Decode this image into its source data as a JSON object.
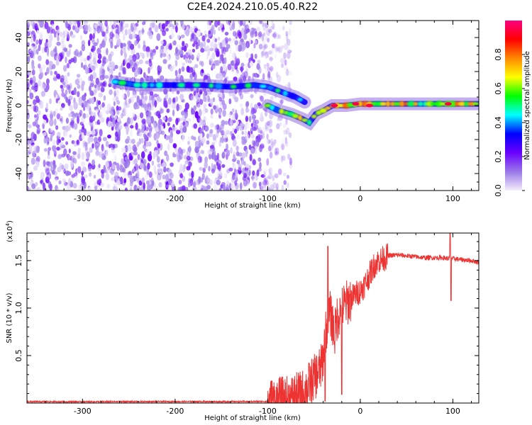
{
  "title": "C2E4.2024.210.05.40.R22",
  "chart_data": [
    {
      "type": "heatmap",
      "xlabel": "Height of straight line (km)",
      "ylabel": "Frequency (Hz)",
      "xlim": [
        -360,
        128
      ],
      "ylim": [
        -50,
        50
      ],
      "xticks": [
        -300,
        -200,
        -100,
        0,
        100
      ],
      "yticks": [
        -40,
        -20,
        0,
        20,
        40
      ],
      "colorbar": {
        "label": "Normalized spectral amplitude",
        "range": [
          0,
          1
        ],
        "ticks": [
          "0.0",
          "0.2",
          "0.4",
          "0.6",
          "0.8"
        ],
        "colors": [
          "#f4eefc",
          "#9a78e8",
          "#6a00ff",
          "#0000ff",
          "#00ffff",
          "#00ff00",
          "#ffff00",
          "#ff8800",
          "#ff0000",
          "#ff0080"
        ]
      },
      "noise_region": {
        "x_range": [
          -360,
          -95
        ],
        "y_range": [
          -50,
          50
        ]
      },
      "tracks": [
        {
          "points": [
            [
              -265,
              14
            ],
            [
              -240,
              12
            ],
            [
              -200,
              12
            ],
            [
              -170,
              12
            ],
            [
              -140,
              11
            ],
            [
              -115,
              12
            ],
            [
              -100,
              11
            ],
            [
              -85,
              8
            ],
            [
              -70,
              5
            ],
            [
              -60,
              2
            ]
          ],
          "level": 0.45
        },
        {
          "points": [
            [
              -100,
              0
            ],
            [
              -88,
              -3
            ],
            [
              -75,
              -5
            ],
            [
              -62,
              -8
            ],
            [
              -55,
              -10
            ],
            [
              -48,
              -5
            ],
            [
              -40,
              -3
            ],
            [
              -30,
              0
            ],
            [
              -15,
              0
            ],
            [
              0,
              1
            ],
            [
              20,
              1
            ],
            [
              50,
              1
            ],
            [
              80,
              1
            ],
            [
              100,
              1
            ],
            [
              128,
              1
            ]
          ],
          "level": 0.6
        }
      ],
      "hotspots": [
        [
          -28,
          0
        ],
        [
          -5,
          1
        ],
        [
          10,
          0
        ],
        [
          95,
          1
        ]
      ]
    },
    {
      "type": "line",
      "xlabel": "Height of straight line (km)",
      "ylabel": "SNR (10 * v/v)",
      "yscale_label": "(x10",
      "yscale_exp": "4",
      "yscale_close": ")",
      "xlim": [
        -360,
        128
      ],
      "ylim": [
        0,
        17900
      ],
      "xticks": [
        -300,
        -200,
        -100,
        0,
        100
      ],
      "yticks": [
        0.5,
        1,
        1.5
      ],
      "ytick_labels": [
        "0.5",
        "1.0",
        "1.5"
      ],
      "grid": false,
      "color": "#ee3333",
      "series": [
        {
          "x": [
            -360,
            -300,
            -250,
            -200,
            -150,
            -120,
            -100,
            -90,
            -80,
            -70,
            -60,
            -55,
            -50,
            -46,
            -42,
            -40,
            -38,
            -35,
            -33,
            -30,
            -28,
            -25,
            -20,
            -15,
            -10,
            -5,
            0,
            5,
            10,
            15,
            20,
            25,
            30,
            40,
            50,
            60,
            70,
            80,
            90,
            95,
            97,
            98,
            100,
            110,
            120,
            128
          ],
          "y": [
            150,
            140,
            150,
            160,
            150,
            160,
            170,
            260,
            400,
            700,
            1200,
            2000,
            2600,
            3200,
            3800,
            5000,
            7000,
            8500,
            9500,
            8500,
            7000,
            9000,
            10000,
            10500,
            11000,
            11500,
            11800,
            12500,
            13500,
            14500,
            15000,
            15200,
            15500,
            15600,
            15500,
            15400,
            15300,
            15300,
            15300,
            15200,
            15300,
            15300,
            15200,
            15100,
            15000,
            14800
          ]
        }
      ],
      "spikes": [
        [
          -35,
          16500
        ],
        [
          -38,
          200
        ],
        [
          -20,
          900
        ],
        [
          97,
          17900
        ],
        [
          98,
          10800
        ]
      ]
    }
  ]
}
